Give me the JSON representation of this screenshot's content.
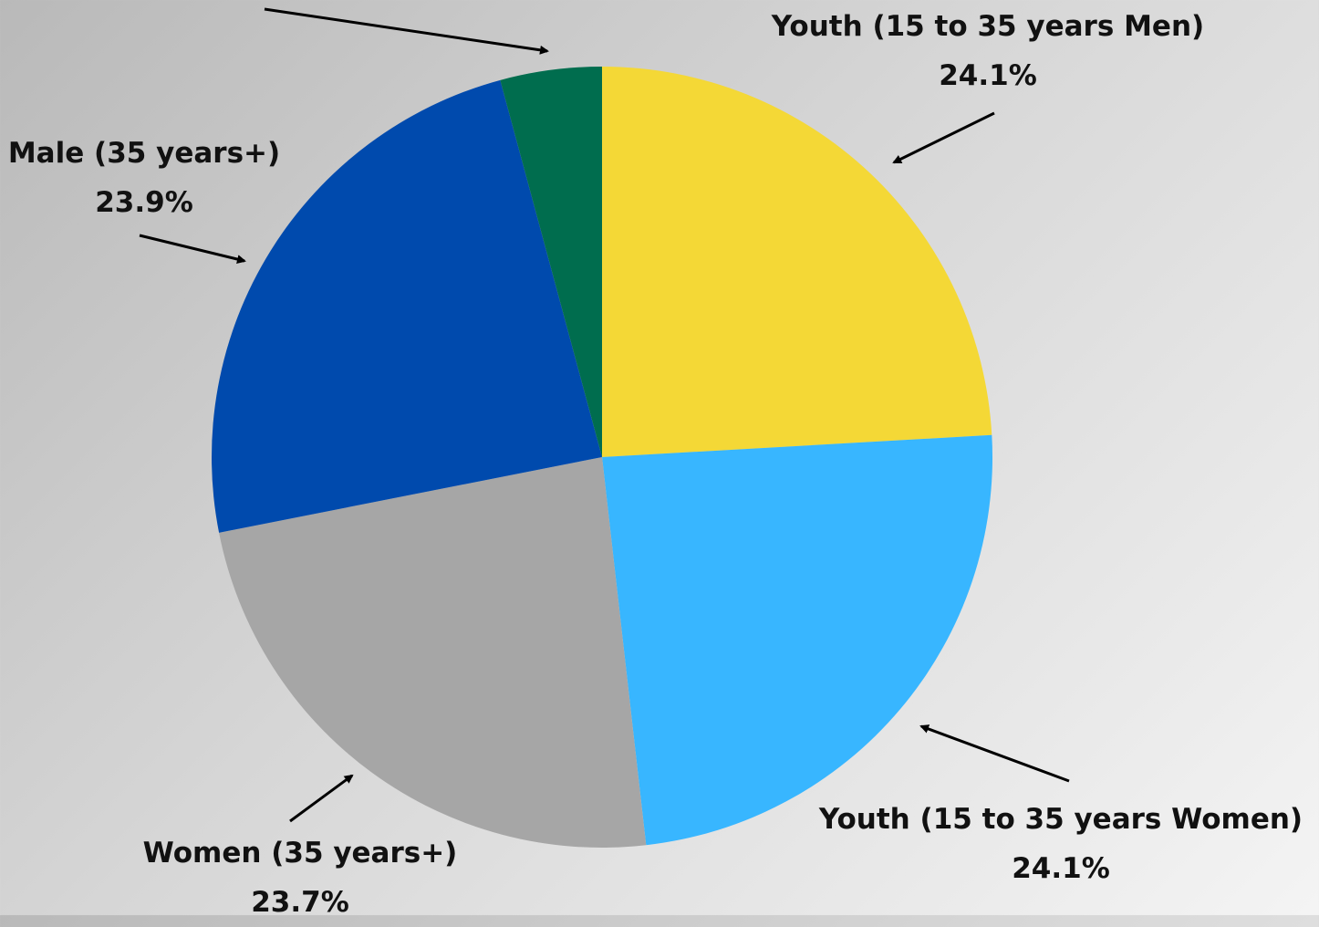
{
  "chart_data": {
    "type": "pie",
    "start_angle_deg": 0,
    "direction": "clockwise",
    "slices": [
      {
        "label": "Youth (15 to 35 years Men)",
        "value": 24.1,
        "value_label": "24.1%",
        "color": "#F4D836"
      },
      {
        "label": "Youth (15 to 35 years Women)",
        "value": 24.1,
        "value_label": "24.1%",
        "color": "#38B6FF"
      },
      {
        "label": "Women (35 years+)",
        "value": 23.7,
        "value_label": "23.7%",
        "color": "#A6A6A6"
      },
      {
        "label": "Male (35 years+)",
        "value": 23.9,
        "value_label": "23.9%",
        "color": "#004AAD"
      },
      {
        "label": "",
        "value": 4.2,
        "value_label": "",
        "color": "#006D4E"
      }
    ]
  }
}
